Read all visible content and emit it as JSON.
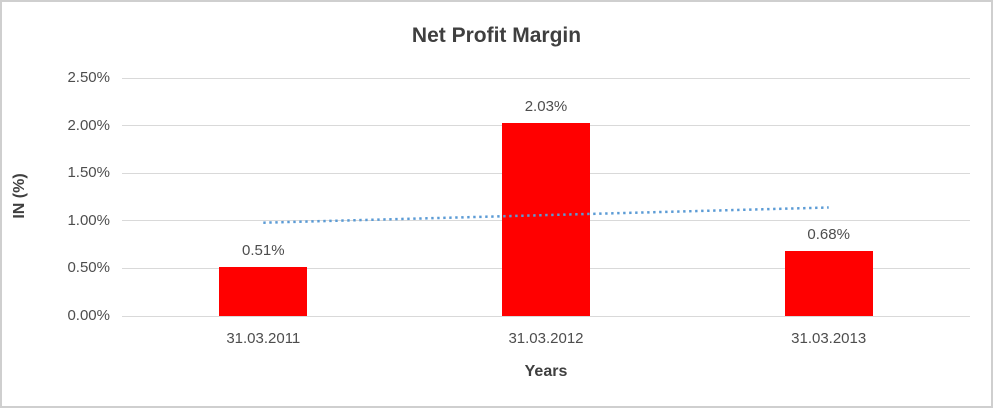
{
  "chart_data": {
    "type": "bar",
    "title": "Net Profit Margin",
    "xlabel": "Years",
    "ylabel": "IN (%)",
    "categories": [
      "31.03.2011",
      "31.03.2012",
      "31.03.2013"
    ],
    "values": [
      0.51,
      2.03,
      0.68
    ],
    "data_labels": [
      "0.51%",
      "2.03%",
      "0.68%"
    ],
    "ylim": [
      0,
      2.5
    ],
    "yticks": [
      0,
      0.5,
      1.0,
      1.5,
      2.0,
      2.5
    ],
    "ytick_labels": [
      "0.00%",
      "0.50%",
      "1.00%",
      "1.50%",
      "2.00%",
      "2.50%"
    ],
    "grid": true,
    "legend": false,
    "bar_color": "#ff0000",
    "trendline": {
      "type": "linear",
      "style": "dotted",
      "color": "#5b9bd5",
      "start_value": 0.98,
      "end_value": 1.14
    }
  },
  "colors": {
    "background": "#ffffff",
    "frame_border": "#cfcfcf",
    "gridline": "#d9d9d9",
    "title_text": "#3f3f3f",
    "label_text": "#4d4d4d"
  }
}
